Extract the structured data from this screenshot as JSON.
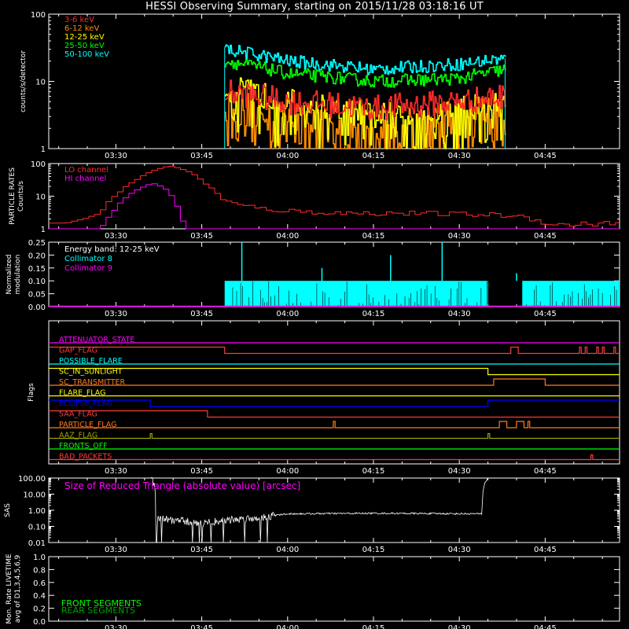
{
  "title": "HESSI Observing Summary, starting on 2015/11/28 03:18:16 UT",
  "time_ticks": [
    "03:30",
    "03:45",
    "04:00",
    "04:15",
    "04:30",
    "04:45"
  ],
  "colors": {
    "bg": "#000000",
    "axis": "#ffffff",
    "red": "#ff2a2a",
    "orange": "#ff8c00",
    "yellow": "#ffff00",
    "green": "#00ff00",
    "cyan": "#00ffff",
    "magenta": "#ff00ff",
    "blue": "#0000ff",
    "olive": "#a0a000",
    "darkgreen": "#00a000",
    "flagred": "#ff3a3a",
    "flagorange": "#ff7a20"
  },
  "chart_data": [
    {
      "type": "line",
      "panel": "count_rates",
      "ylabel": "counts/s/detector",
      "yscale": "log",
      "ylim": [
        1,
        100
      ],
      "y_ticks": [
        "1",
        "10",
        "100"
      ],
      "x_range": [
        "03:18:16",
        "04:58:00"
      ],
      "data_span": [
        "03:49",
        "04:38"
      ],
      "series": [
        {
          "name": "3-6 keV",
          "color": "#ff2a2a",
          "t": [
            "03:49",
            "04:00",
            "04:15",
            "04:30",
            "04:38"
          ],
          "values": [
            7,
            5,
            4,
            5,
            6
          ]
        },
        {
          "name": "6-12 keV",
          "color": "#ff8c00",
          "t": [
            "03:49",
            "04:00",
            "04:15",
            "04:30",
            "04:38"
          ],
          "values": [
            5,
            3,
            2,
            3.5,
            4
          ]
        },
        {
          "name": "12-25 keV",
          "color": "#ffff00",
          "t": [
            "03:49",
            "04:00",
            "04:15",
            "04:30",
            "04:38"
          ],
          "values": [
            8,
            5,
            3,
            4,
            5
          ]
        },
        {
          "name": "25-50 keV",
          "color": "#00ff00",
          "t": [
            "03:49",
            "04:00",
            "04:15",
            "04:30",
            "04:38"
          ],
          "values": [
            20,
            13,
            10,
            11,
            15
          ]
        },
        {
          "name": "50-100 keV",
          "color": "#00ffff",
          "t": [
            "03:49",
            "04:00",
            "04:15",
            "04:30",
            "04:38"
          ],
          "values": [
            30,
            20,
            15,
            18,
            22
          ]
        }
      ]
    },
    {
      "type": "line",
      "panel": "particle_rates",
      "ylabel_lines": [
        "PARTICLE RATES",
        "Counts/s"
      ],
      "yscale": "log",
      "ylim": [
        1,
        100
      ],
      "y_ticks": [
        "1",
        "10",
        "100"
      ],
      "series": [
        {
          "name": "LO channel",
          "color": "#ff2a2a",
          "t": [
            "03:18",
            "03:21",
            "03:24",
            "03:27",
            "03:30",
            "03:33",
            "03:36",
            "03:39",
            "03:42",
            "03:45",
            "03:48",
            "03:52",
            "03:56",
            "04:00",
            "04:10",
            "04:20",
            "04:30",
            "04:40",
            "04:44",
            "04:46",
            "04:58"
          ],
          "values": [
            1.5,
            1.5,
            2,
            3,
            12,
            30,
            60,
            85,
            60,
            25,
            8,
            5,
            4,
            3.5,
            3,
            3,
            2.8,
            2.5,
            1.7,
            1.3,
            1.5
          ]
        },
        {
          "name": "HI channel",
          "color": "#ff00ff",
          "t": [
            "03:18",
            "03:27",
            "03:29",
            "03:31",
            "03:34",
            "03:36",
            "03:38",
            "03:40",
            "03:41",
            "03:42",
            "04:58"
          ],
          "values": [
            1,
            1,
            3,
            8,
            18,
            25,
            18,
            6,
            2,
            1,
            1
          ]
        }
      ]
    },
    {
      "type": "bar",
      "panel": "modulation",
      "ylabel_lines": [
        "Normalized",
        "modulation"
      ],
      "ylim": [
        0,
        0.25
      ],
      "y_ticks": [
        "0.00",
        "0.05",
        "0.10",
        "0.15",
        "0.20",
        "0.25"
      ],
      "annotation": "Energy band: 12-25 keV",
      "series": [
        {
          "name": "Collimator 8",
          "color": "#00ffff",
          "segments": [
            [
              "03:49",
              "04:35"
            ],
            [
              "04:41",
              "04:58"
            ]
          ],
          "typical": 0.1,
          "spikes": [
            [
              "03:52",
              0.25
            ],
            [
              "04:06",
              0.15
            ],
            [
              "04:18",
              0.2
            ],
            [
              "04:27",
              0.25
            ],
            [
              "04:40",
              0.13
            ]
          ]
        },
        {
          "name": "Collimator 9",
          "color": "#ff00ff",
          "constant": 0.0
        }
      ]
    },
    {
      "type": "line",
      "panel": "flags",
      "ylabel": "Flags",
      "flags": [
        {
          "name": "ATTENUATOR_STATE",
          "color": "#ff00ff"
        },
        {
          "name": "GAP_FLAG",
          "color": "#ff3a3a"
        },
        {
          "name": "POSSIBLE_FLARE",
          "color": "#00ffff"
        },
        {
          "name": "SC_IN_SUNLIGHT",
          "color": "#ffff00"
        },
        {
          "name": "SC_TRANSMITTER",
          "color": "#ff7a20"
        },
        {
          "name": "FLARE_FLAG",
          "color": "#ffff00"
        },
        {
          "name": "ECLIPSE_FLAG",
          "color": "#0000ff"
        },
        {
          "name": "SAA_FLAG",
          "color": "#ff3a3a"
        },
        {
          "name": "PARTICLE_FLAG",
          "color": "#ff7a20"
        },
        {
          "name": "AAZ_FLAG",
          "color": "#a0a000"
        },
        {
          "name": "FRONTS_OFF",
          "color": "#00ff00"
        },
        {
          "name": "BAD_PACKETS",
          "color": "#ff3a3a"
        }
      ]
    },
    {
      "type": "line",
      "panel": "sas",
      "ylabel": "SAS",
      "yscale": "log",
      "ylim": [
        0.01,
        100
      ],
      "y_ticks": [
        "100.00",
        "10.00",
        "1.00",
        "0.10",
        "0.01"
      ],
      "annotation": "Size of Reduced Triangle (absolute value) [arcsec]",
      "series": [
        {
          "name": "Size of Reduced Triangle (absolute value) [arcsec]",
          "color": "#ffffff",
          "t": [
            "03:36",
            "03:37",
            "03:45",
            "03:55",
            "04:00",
            "04:15",
            "04:34",
            "04:35"
          ],
          "values": [
            100,
            0.3,
            0.15,
            0.35,
            0.6,
            0.65,
            0.6,
            100
          ]
        }
      ]
    },
    {
      "type": "line",
      "panel": "livetime",
      "ylabel_lines": [
        "Mon. Rate LIVETIME",
        "avg of D1,3,4,5,6,9"
      ],
      "ylim": [
        0,
        1.0
      ],
      "y_ticks": [
        "0.0",
        "0.2",
        "0.4",
        "0.6",
        "0.8",
        "1.0"
      ],
      "legend": [
        {
          "name": "FRONT SEGMENTS",
          "color": "#00ff00"
        },
        {
          "name": "REAR SEGMENTS",
          "color": "#00a000"
        }
      ],
      "series": []
    }
  ]
}
